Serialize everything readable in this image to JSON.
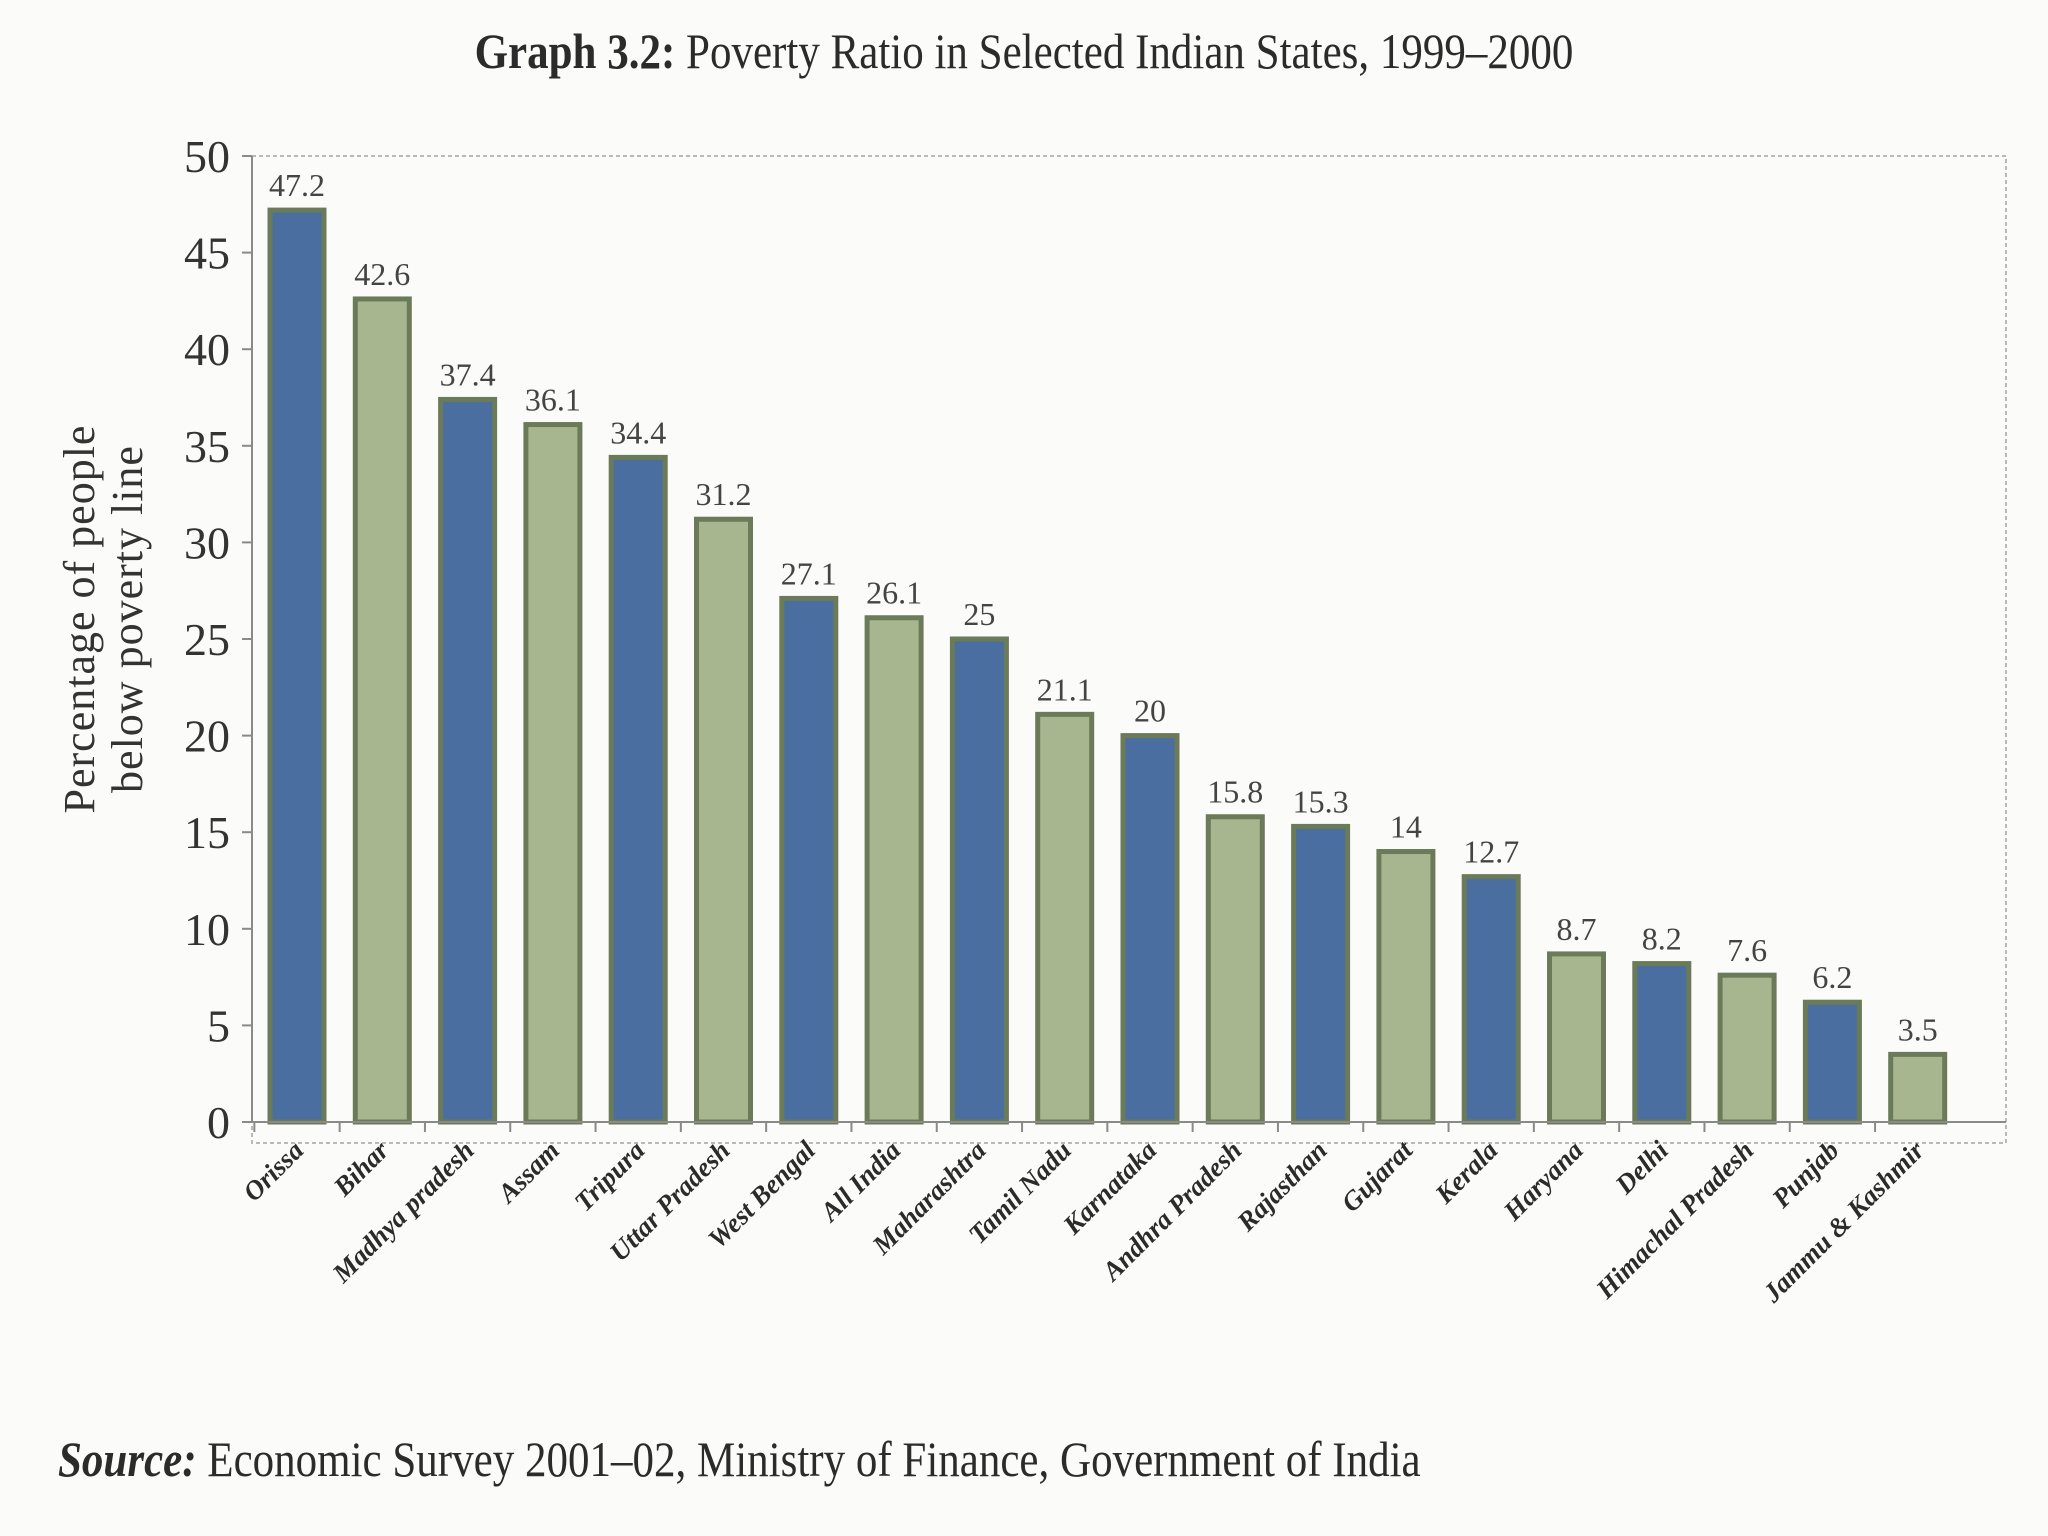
{
  "title": {
    "lead": "Graph 3.2:",
    "rest": "Poverty Ratio in Selected Indian States, 1999–2000"
  },
  "source": {
    "lead": "Source:",
    "rest": "Economic Survey 2001–02, Ministry of Finance, Government of India"
  },
  "colors": {
    "blue_bar": "#4a6e9f",
    "green_bar": "#a8b68f",
    "bar_border": "#6b7a58"
  },
  "chart_data": {
    "type": "bar",
    "title": "Graph 3.2: Poverty Ratio in Selected Indian States, 1999–2000",
    "xlabel": "",
    "ylabel_lines": [
      "Percentage of people",
      "below poverty line"
    ],
    "ylim": [
      0,
      50
    ],
    "yticks": [
      0,
      5,
      10,
      15,
      20,
      25,
      30,
      35,
      40,
      45,
      50
    ],
    "grid": false,
    "categories": [
      "Orissa",
      "Bihar",
      "Madhya pradesh",
      "Assam",
      "Tripura",
      "Uttar Pradesh",
      "West Bengal",
      "All India",
      "Maharashtra",
      "Tamil Nadu",
      "Karnataka",
      "Andhra Pradesh",
      "Rajasthan",
      "Gujarat",
      "Kerala",
      "Haryana",
      "Delhi",
      "Himachal Pradesh",
      "Punjab",
      "Jammu & Kashmir"
    ],
    "values": [
      47.2,
      42.6,
      37.4,
      36.1,
      34.4,
      31.2,
      27.1,
      26.1,
      25,
      21.1,
      20,
      15.8,
      15.3,
      14,
      12.7,
      8.7,
      8.2,
      7.6,
      6.2,
      3.5
    ],
    "bar_colors": [
      "blue",
      "green",
      "blue",
      "green",
      "blue",
      "green",
      "blue",
      "green",
      "blue",
      "green",
      "blue",
      "green",
      "blue",
      "green",
      "blue",
      "green",
      "blue",
      "green",
      "blue",
      "green"
    ]
  }
}
